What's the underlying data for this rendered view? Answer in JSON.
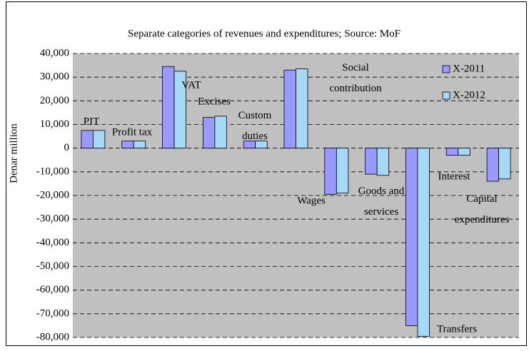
{
  "chart_data": {
    "type": "bar",
    "title": "Separate categories of revenues and expenditures; Source: MoF",
    "y_label": "Denar million",
    "categories": [
      "PIT",
      "Profit tax",
      "VAT",
      "Excises",
      "Custom duties",
      "Social contribution",
      "Wages",
      "Goods and services",
      "Transfers",
      "Interest",
      "Capital expenditures"
    ],
    "series": [
      {
        "name": "X-2011",
        "color": "#9999ff",
        "values": [
          7500,
          3000,
          34500,
          13000,
          3000,
          33000,
          -19500,
          -11000,
          -75000,
          -3000,
          -14000
        ]
      },
      {
        "name": "X-2012",
        "color": "#a6d8f7",
        "values": [
          7500,
          3000,
          32500,
          13500,
          3000,
          33500,
          -19000,
          -11500,
          -79500,
          -3000,
          -13000
        ]
      }
    ],
    "ylim": [
      -80000,
      40000
    ],
    "yticks": [
      {
        "value": 40000,
        "label": "40,000"
      },
      {
        "value": 30000,
        "label": "30,000"
      },
      {
        "value": 20000,
        "label": "20,000"
      },
      {
        "value": 10000,
        "label": "10,000"
      },
      0,
      {
        "value": -10000,
        "label": "-10,000"
      },
      {
        "value": -20000,
        "label": "-20,000"
      },
      {
        "value": -30000,
        "label": "-30,000"
      },
      {
        "value": -40000,
        "label": "-40,000"
      },
      {
        "value": -50000,
        "label": "-50,000"
      },
      {
        "value": -60000,
        "label": "-60,000"
      },
      {
        "value": -70000,
        "label": "-70,000"
      },
      {
        "value": -80000,
        "label": "-80,000"
      }
    ],
    "grid": true
  }
}
